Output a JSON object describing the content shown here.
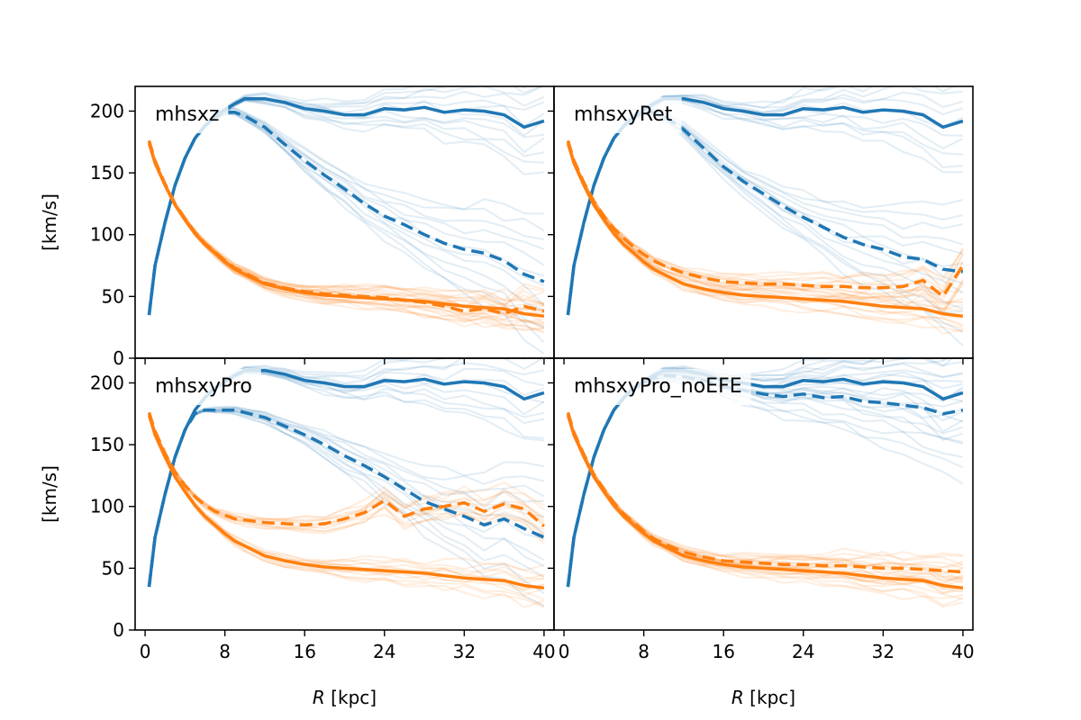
{
  "chart_data": [
    {
      "type": "line",
      "title": "mhsxz",
      "xlabel": "",
      "ylabel": "[km/s]",
      "xlim": [
        -1,
        41
      ],
      "ylim": [
        0,
        220
      ],
      "xticks": [
        "0",
        "8",
        "16",
        "24",
        "32",
        "40"
      ],
      "yticks": [
        "0",
        "50",
        "100",
        "150",
        "200"
      ],
      "colors": {
        "blue": "#1f77b4",
        "orange": "#ff7f0e"
      },
      "series": [
        {
          "color": "blue",
          "style": "solid",
          "x": [
            0.4,
            1,
            2,
            3,
            4,
            5,
            6,
            7,
            8,
            9,
            10,
            12,
            14,
            16,
            18,
            20,
            22,
            24,
            26,
            28,
            30,
            32,
            34,
            36,
            38,
            40
          ],
          "y": [
            35,
            75,
            110,
            140,
            162,
            178,
            188,
            196,
            201,
            206,
            210,
            210,
            207,
            202,
            200,
            197,
            197,
            202,
            201,
            203,
            199,
            201,
            200,
            197,
            187,
            192
          ]
        },
        {
          "color": "blue",
          "style": "dashed",
          "x": [
            0.4,
            1,
            2,
            3,
            4,
            5,
            6,
            7,
            8,
            9,
            10,
            12,
            14,
            16,
            18,
            20,
            22,
            24,
            26,
            28,
            30,
            32,
            34,
            36,
            38,
            40
          ],
          "y": [
            35,
            75,
            110,
            140,
            162,
            178,
            188,
            195,
            199,
            199,
            196,
            187,
            173,
            160,
            148,
            137,
            125,
            115,
            108,
            100,
            93,
            88,
            85,
            79,
            68,
            62
          ]
        },
        {
          "color": "orange",
          "style": "solid",
          "x": [
            0.4,
            1,
            2,
            3,
            4,
            5,
            6,
            7,
            8,
            9,
            10,
            12,
            14,
            16,
            18,
            20,
            22,
            24,
            26,
            28,
            30,
            32,
            34,
            36,
            38,
            40
          ],
          "y": [
            174,
            158,
            140,
            124,
            112,
            101,
            92,
            85,
            78,
            72,
            68,
            60,
            56,
            53,
            51,
            50,
            49,
            48,
            47,
            46,
            44,
            42,
            41,
            40,
            36,
            34
          ]
        },
        {
          "color": "orange",
          "style": "dashed",
          "x": [
            0.4,
            1,
            2,
            3,
            4,
            5,
            6,
            7,
            8,
            9,
            10,
            12,
            14,
            16,
            18,
            20,
            22,
            24,
            26,
            28,
            30,
            32,
            34,
            36,
            38,
            40
          ],
          "y": [
            176,
            160,
            141,
            125,
            113,
            102,
            93,
            86,
            79,
            73,
            69,
            61,
            57,
            54,
            52,
            51,
            50,
            49,
            47,
            45,
            42,
            38,
            40,
            36,
            42,
            38
          ]
        }
      ]
    },
    {
      "type": "line",
      "title": "mhsxyRet",
      "xlabel": "",
      "ylabel": "",
      "xlim": [
        -1,
        41
      ],
      "ylim": [
        0,
        220
      ],
      "xticks": [
        "0",
        "8",
        "16",
        "24",
        "32",
        "40"
      ],
      "yticks": [
        "0",
        "50",
        "100",
        "150",
        "200"
      ],
      "colors": {
        "blue": "#1f77b4",
        "orange": "#ff7f0e"
      },
      "series": [
        {
          "color": "blue",
          "style": "solid",
          "x": [
            0.4,
            1,
            2,
            3,
            4,
            5,
            6,
            7,
            8,
            9,
            10,
            12,
            14,
            16,
            18,
            20,
            22,
            24,
            26,
            28,
            30,
            32,
            34,
            36,
            38,
            40
          ],
          "y": [
            35,
            75,
            110,
            140,
            162,
            178,
            188,
            196,
            201,
            206,
            210,
            210,
            207,
            202,
            200,
            197,
            197,
            202,
            201,
            203,
            199,
            201,
            200,
            197,
            187,
            192
          ]
        },
        {
          "color": "blue",
          "style": "dashed",
          "x": [
            0.4,
            1,
            2,
            3,
            4,
            5,
            6,
            7,
            8,
            9,
            10,
            12,
            14,
            16,
            18,
            20,
            22,
            24,
            26,
            28,
            30,
            32,
            34,
            36,
            38,
            40
          ],
          "y": [
            35,
            75,
            110,
            140,
            162,
            178,
            188,
            195,
            199,
            199,
            196,
            185,
            170,
            155,
            143,
            133,
            123,
            114,
            106,
            98,
            92,
            88,
            82,
            80,
            72,
            70
          ]
        },
        {
          "color": "orange",
          "style": "solid",
          "x": [
            0.4,
            1,
            2,
            3,
            4,
            5,
            6,
            7,
            8,
            9,
            10,
            12,
            14,
            16,
            18,
            20,
            22,
            24,
            26,
            28,
            30,
            32,
            34,
            36,
            38,
            40
          ],
          "y": [
            174,
            158,
            140,
            124,
            112,
            101,
            92,
            85,
            78,
            72,
            68,
            60,
            56,
            53,
            51,
            50,
            49,
            48,
            47,
            46,
            44,
            42,
            41,
            40,
            36,
            34
          ]
        },
        {
          "color": "orange",
          "style": "dashed",
          "x": [
            0.4,
            1,
            2,
            3,
            4,
            5,
            6,
            7,
            8,
            9,
            10,
            12,
            14,
            16,
            18,
            20,
            22,
            24,
            26,
            28,
            30,
            32,
            34,
            36,
            38,
            40
          ],
          "y": [
            176,
            160,
            142,
            127,
            115,
            105,
            97,
            90,
            84,
            79,
            75,
            69,
            65,
            62,
            61,
            60,
            60,
            59,
            58,
            58,
            57,
            57,
            58,
            63,
            50,
            75
          ]
        }
      ]
    },
    {
      "type": "line",
      "title": "mhsxyPro",
      "xlabel": "R [kpc]",
      "ylabel": "[km/s]",
      "xlim": [
        -1,
        41
      ],
      "ylim": [
        0,
        220
      ],
      "xticks": [
        "0",
        "8",
        "16",
        "24",
        "32",
        "40"
      ],
      "yticks": [
        "0",
        "50",
        "100",
        "150",
        "200"
      ],
      "colors": {
        "blue": "#1f77b4",
        "orange": "#ff7f0e"
      },
      "series": [
        {
          "color": "blue",
          "style": "solid",
          "x": [
            0.4,
            1,
            2,
            3,
            4,
            5,
            6,
            7,
            8,
            9,
            10,
            12,
            14,
            16,
            18,
            20,
            22,
            24,
            26,
            28,
            30,
            32,
            34,
            36,
            38,
            40
          ],
          "y": [
            35,
            75,
            110,
            140,
            162,
            178,
            188,
            196,
            201,
            206,
            210,
            210,
            207,
            202,
            200,
            197,
            197,
            202,
            201,
            203,
            199,
            201,
            200,
            197,
            187,
            192
          ]
        },
        {
          "color": "blue",
          "style": "dashed",
          "x": [
            0.4,
            1,
            2,
            3,
            4,
            5,
            6,
            7,
            8,
            9,
            10,
            12,
            14,
            16,
            18,
            20,
            22,
            24,
            26,
            28,
            30,
            32,
            34,
            36,
            38,
            40
          ],
          "y": [
            35,
            75,
            110,
            140,
            162,
            175,
            178,
            178,
            178,
            178,
            176,
            172,
            165,
            158,
            150,
            141,
            133,
            124,
            114,
            104,
            98,
            92,
            85,
            90,
            82,
            75
          ]
        },
        {
          "color": "orange",
          "style": "solid",
          "x": [
            0.4,
            1,
            2,
            3,
            4,
            5,
            6,
            7,
            8,
            9,
            10,
            12,
            14,
            16,
            18,
            20,
            22,
            24,
            26,
            28,
            30,
            32,
            34,
            36,
            38,
            40
          ],
          "y": [
            174,
            158,
            140,
            124,
            112,
            101,
            92,
            85,
            78,
            72,
            68,
            60,
            56,
            53,
            51,
            50,
            49,
            48,
            47,
            46,
            44,
            42,
            41,
            40,
            36,
            34
          ]
        },
        {
          "color": "orange",
          "style": "dashed",
          "x": [
            0.4,
            1,
            2,
            3,
            4,
            5,
            6,
            7,
            8,
            9,
            10,
            12,
            14,
            16,
            18,
            20,
            22,
            24,
            26,
            28,
            30,
            32,
            34,
            36,
            38,
            40
          ],
          "y": [
            176,
            161,
            143,
            128,
            117,
            108,
            101,
            96,
            93,
            90,
            89,
            87,
            86,
            85,
            86,
            90,
            95,
            105,
            92,
            98,
            100,
            103,
            96,
            102,
            98,
            84
          ]
        }
      ]
    },
    {
      "type": "line",
      "title": "mhsxyPro_noEFE",
      "xlabel": "R [kpc]",
      "ylabel": "",
      "xlim": [
        -1,
        41
      ],
      "ylim": [
        0,
        220
      ],
      "xticks": [
        "0",
        "8",
        "16",
        "24",
        "32",
        "40"
      ],
      "yticks": [
        "0",
        "50",
        "100",
        "150",
        "200"
      ],
      "colors": {
        "blue": "#1f77b4",
        "orange": "#ff7f0e"
      },
      "series": [
        {
          "color": "blue",
          "style": "solid",
          "x": [
            0.4,
            1,
            2,
            3,
            4,
            5,
            6,
            7,
            8,
            9,
            10,
            12,
            14,
            16,
            18,
            20,
            22,
            24,
            26,
            28,
            30,
            32,
            34,
            36,
            38,
            40
          ],
          "y": [
            35,
            75,
            110,
            140,
            162,
            178,
            188,
            196,
            201,
            206,
            210,
            210,
            207,
            202,
            200,
            197,
            197,
            202,
            201,
            203,
            199,
            201,
            200,
            197,
            187,
            192
          ]
        },
        {
          "color": "blue",
          "style": "dashed",
          "x": [
            0.4,
            1,
            2,
            3,
            4,
            5,
            6,
            7,
            8,
            9,
            10,
            12,
            14,
            16,
            18,
            20,
            22,
            24,
            26,
            28,
            30,
            32,
            34,
            36,
            38,
            40
          ],
          "y": [
            35,
            75,
            110,
            140,
            162,
            178,
            188,
            196,
            200,
            204,
            206,
            205,
            202,
            197,
            194,
            191,
            189,
            191,
            188,
            189,
            185,
            184,
            182,
            180,
            175,
            178
          ]
        },
        {
          "color": "orange",
          "style": "solid",
          "x": [
            0.4,
            1,
            2,
            3,
            4,
            5,
            6,
            7,
            8,
            9,
            10,
            12,
            14,
            16,
            18,
            20,
            22,
            24,
            26,
            28,
            30,
            32,
            34,
            36,
            38,
            40
          ],
          "y": [
            174,
            158,
            140,
            124,
            112,
            101,
            92,
            85,
            78,
            72,
            68,
            60,
            56,
            53,
            51,
            50,
            49,
            48,
            47,
            46,
            44,
            42,
            41,
            40,
            36,
            34
          ]
        },
        {
          "color": "orange",
          "style": "dashed",
          "x": [
            0.4,
            1,
            2,
            3,
            4,
            5,
            6,
            7,
            8,
            9,
            10,
            12,
            14,
            16,
            18,
            20,
            22,
            24,
            26,
            28,
            30,
            32,
            34,
            36,
            38,
            40
          ],
          "y": [
            176,
            160,
            142,
            126,
            114,
            103,
            94,
            87,
            80,
            74,
            70,
            63,
            59,
            56,
            55,
            54,
            53,
            53,
            52,
            52,
            51,
            50,
            50,
            49,
            48,
            47
          ]
        }
      ]
    }
  ]
}
